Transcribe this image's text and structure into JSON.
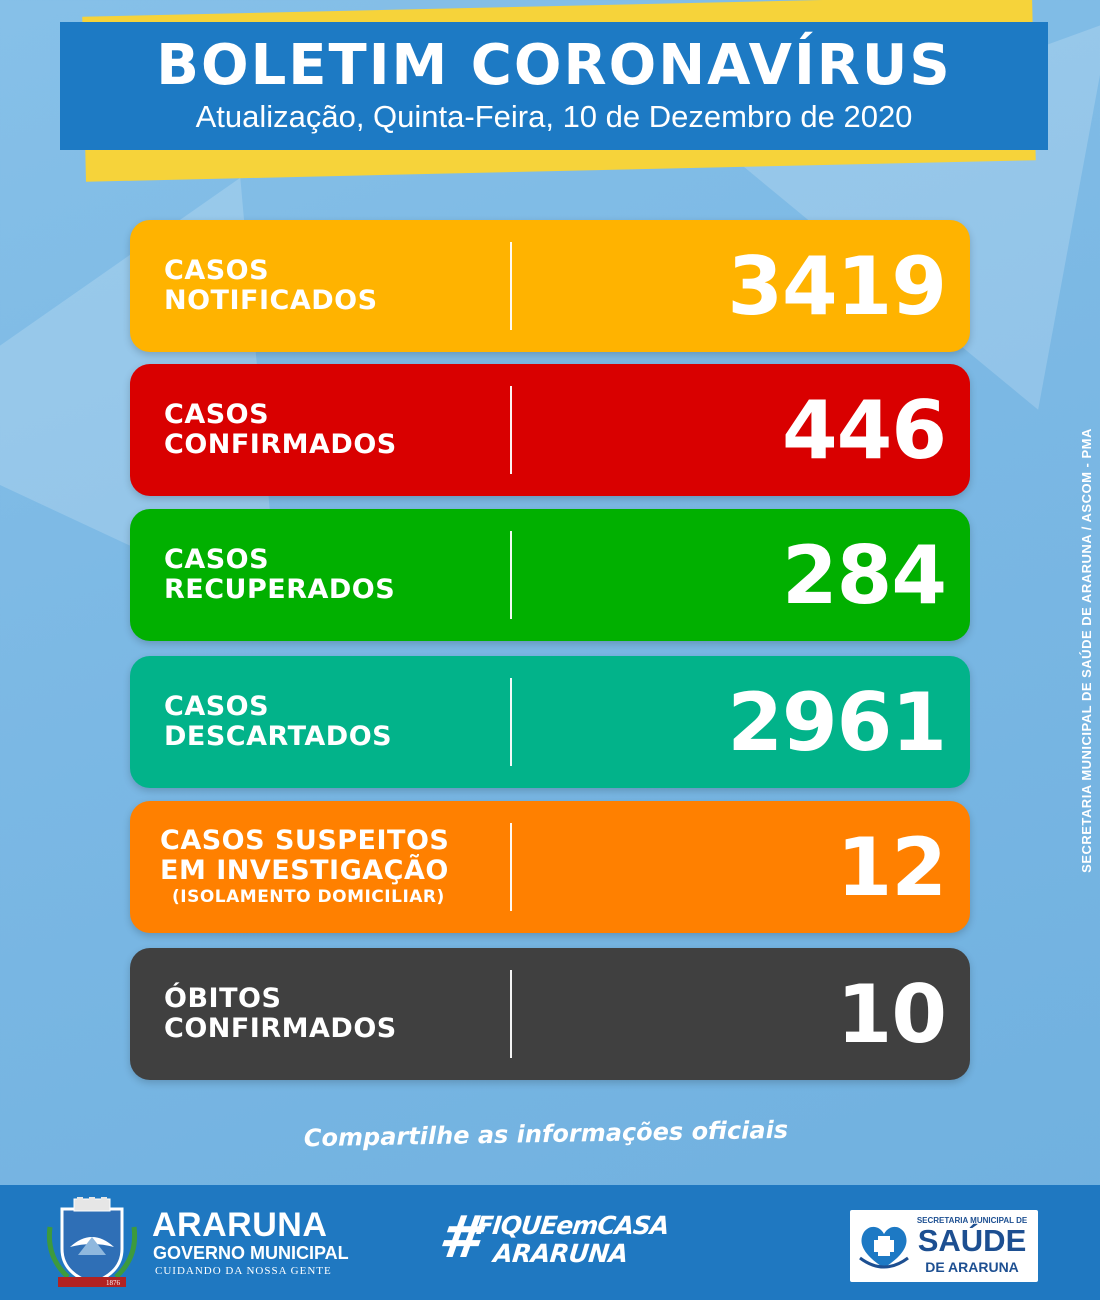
{
  "header": {
    "title": "BOLETIM CORONAVÍRUS",
    "subtitle": "Atualização, Quinta-Feira, 10 de Dezembro de 2020"
  },
  "cards": [
    {
      "line1": "CASOS",
      "line2": "NOTIFICADOS",
      "line3": "",
      "value": "3419",
      "color": "#ffb300"
    },
    {
      "line1": "CASOS",
      "line2": "CONFIRMADOS",
      "line3": "",
      "value": "446",
      "color": "#d90000"
    },
    {
      "line1": "CASOS",
      "line2": "RECUPERADOS",
      "line3": "",
      "value": "284",
      "color": "#01b000"
    },
    {
      "line1": "CASOS",
      "line2": "DESCARTADOS",
      "line3": "",
      "value": "2961",
      "color": "#02b38a"
    },
    {
      "line1": "CASOS SUSPEITOS",
      "line2": "EM INVESTIGAÇÃO",
      "line3": "(ISOLAMENTO DOMICILIAR)",
      "value": "12",
      "color": "#ff8000"
    },
    {
      "line1": "ÓBITOS",
      "line2": "CONFIRMADOS",
      "line3": "",
      "value": "10",
      "color": "#404040"
    }
  ],
  "share_text": "Compartilhe as informações oficiais",
  "side_credit": "SECRETARIA MUNICIPAL DE SAÚDE DE ARARUNA / ASCOM - PMA",
  "footer": {
    "city_name": "ARARUNA",
    "city_subtitle": "GOVERNO MUNICIPAL",
    "city_tagline": "CUIDANDO DA NOSSA GENTE",
    "crest_year": "1876",
    "hashtag_symbol": "#",
    "hashtag_line1": "FIQUEemCASA",
    "hashtag_line2": "ARARUNA",
    "saude_line1": "SECRETARIA MUNICIPAL DE",
    "saude_line2": "SAÚDE",
    "saude_line3": "DE ARARUNA"
  }
}
